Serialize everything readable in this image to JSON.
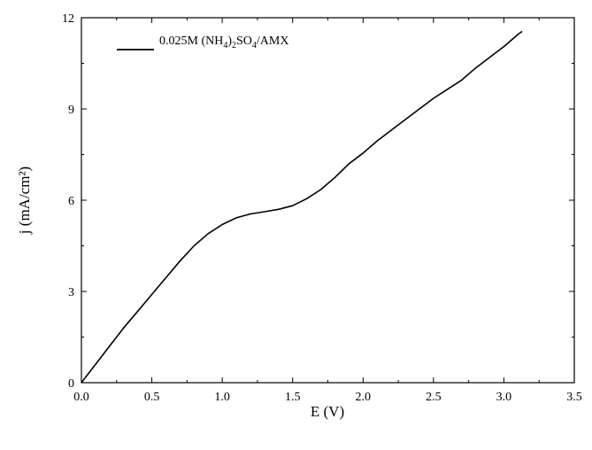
{
  "chart_data": {
    "type": "line",
    "title": "",
    "xlabel": "E (V)",
    "ylabel": "j (mA/cm²)",
    "xlim": [
      0,
      3.5
    ],
    "ylim": [
      0,
      12
    ],
    "xticks": [
      0.0,
      0.5,
      1.0,
      1.5,
      2.0,
      2.5,
      3.0,
      3.5
    ],
    "xtick_labels": [
      "0.0",
      "0.5",
      "1.0",
      "1.5",
      "2.0",
      "2.5",
      "3.0",
      "3.5"
    ],
    "yticks": [
      0,
      3,
      6,
      9,
      12
    ],
    "ytick_labels": [
      "0",
      "3",
      "6",
      "9",
      "12"
    ],
    "grid": false,
    "legend_position": "top-left",
    "series": [
      {
        "name": "0.025M (NH4)2SO4/AMX",
        "color": "#000000",
        "x": [
          0.0,
          0.1,
          0.2,
          0.3,
          0.4,
          0.5,
          0.6,
          0.7,
          0.8,
          0.9,
          1.0,
          1.1,
          1.2,
          1.3,
          1.4,
          1.5,
          1.6,
          1.7,
          1.8,
          1.9,
          2.0,
          2.1,
          2.2,
          2.3,
          2.4,
          2.5,
          2.6,
          2.7,
          2.8,
          2.9,
          3.0,
          3.1,
          3.13
        ],
        "y": [
          0.0,
          0.6,
          1.2,
          1.8,
          2.35,
          2.9,
          3.45,
          4.0,
          4.5,
          4.9,
          5.2,
          5.42,
          5.55,
          5.62,
          5.7,
          5.82,
          6.05,
          6.35,
          6.75,
          7.2,
          7.55,
          7.95,
          8.3,
          8.65,
          9.0,
          9.35,
          9.65,
          9.95,
          10.35,
          10.7,
          11.05,
          11.45,
          11.55
        ]
      }
    ]
  },
  "legend": {
    "prefix": "0.025M (NH",
    "sub1": "4",
    "mid1": ")",
    "sub2": "2",
    "mid2": "SO",
    "sub3": "4",
    "suffix": "/AMX"
  }
}
